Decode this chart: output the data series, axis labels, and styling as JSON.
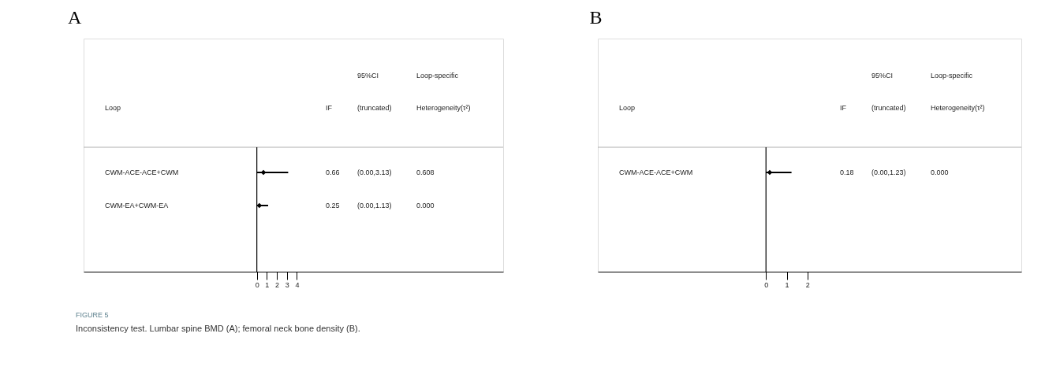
{
  "chart_data": [
    {
      "type": "scatter",
      "title": "A",
      "ylabel": "Loop",
      "orientation": "horizontal",
      "categories": [
        "CWM-ACE-ACE+CWM",
        "CWM-EA+CWM-EA"
      ],
      "series": [
        {
          "color": "#000000",
          "values": [
            0.66,
            0.25
          ],
          "errors": [
            [
              0.0,
              3.13
            ],
            [
              0.0,
              1.13
            ]
          ]
        }
      ],
      "marker": "diamond",
      "xlim": [
        -17.3,
        24.6
      ],
      "xticks": [
        0,
        1,
        2,
        3,
        4
      ],
      "grid": false,
      "ref_lines": [
        {
          "axis": "x",
          "value": 0
        }
      ],
      "annotations": [
        "IF",
        "95%CI",
        "(truncated)",
        "Loop-specific",
        "Heterogeneity(τ²)",
        "0.66",
        "(0.00,3.13)",
        "0.608",
        "0.25",
        "(0.00,1.13)",
        "0.000",
        "FIGURE 5",
        "Inconsistency test. Lumbar spine BMD (A); femoral neck bone density (B)."
      ]
    },
    {
      "type": "scatter",
      "title": "B",
      "ylabel": "Loop",
      "orientation": "horizontal",
      "categories": [
        "CWM-ACE-ACE+CWM"
      ],
      "series": [
        {
          "color": "#000000",
          "values": [
            0.18
          ],
          "errors": [
            [
              0.0,
              1.23
            ]
          ]
        }
      ],
      "marker": "diamond",
      "xlim": [
        -8.1,
        12.3
      ],
      "xticks": [
        0,
        1,
        2
      ],
      "grid": false,
      "ref_lines": [
        {
          "axis": "x",
          "value": 0
        }
      ],
      "annotations": [
        "IF",
        "95%CI",
        "(truncated)",
        "Loop-specific",
        "Heterogeneity(τ²)",
        "0.18",
        "(0.00,1.23)",
        "0.000"
      ]
    }
  ]
}
